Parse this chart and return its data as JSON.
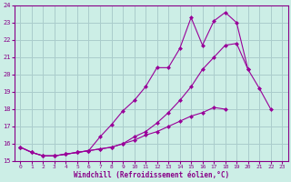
{
  "xlabel": "Windchill (Refroidissement éolien,°C)",
  "x": [
    0,
    1,
    2,
    3,
    4,
    5,
    6,
    7,
    8,
    9,
    10,
    11,
    12,
    13,
    14,
    15,
    16,
    17,
    18,
    19,
    20,
    21,
    22,
    23
  ],
  "line1": [
    15.8,
    15.5,
    15.3,
    15.3,
    15.4,
    15.5,
    15.6,
    15.7,
    15.8,
    16.0,
    16.4,
    16.7,
    17.2,
    17.8,
    18.5,
    19.3,
    20.3,
    21.0,
    21.7,
    21.8,
    20.3,
    19.2,
    18.0,
    null
  ],
  "line2": [
    15.8,
    15.5,
    15.3,
    15.3,
    15.4,
    15.5,
    15.6,
    16.4,
    17.1,
    17.9,
    18.5,
    19.3,
    20.4,
    20.4,
    21.5,
    23.3,
    21.7,
    23.1,
    23.6,
    23.0,
    20.3,
    null,
    null,
    null
  ],
  "line3": [
    15.8,
    15.5,
    15.3,
    15.3,
    15.4,
    15.5,
    15.6,
    15.7,
    15.8,
    16.0,
    16.2,
    16.5,
    16.7,
    17.0,
    17.3,
    17.6,
    17.8,
    18.1,
    18.0,
    null,
    null,
    null,
    null,
    null
  ],
  "bg_color": "#cceee6",
  "grid_color": "#aacccc",
  "line_color": "#990099",
  "ylim": [
    15,
    24
  ],
  "xlim": [
    -0.5,
    23.5
  ],
  "yticks": [
    15,
    16,
    17,
    18,
    19,
    20,
    21,
    22,
    23,
    24
  ],
  "xticks": [
    0,
    1,
    2,
    3,
    4,
    5,
    6,
    7,
    8,
    9,
    10,
    11,
    12,
    13,
    14,
    15,
    16,
    17,
    18,
    19,
    20,
    21,
    22,
    23
  ]
}
